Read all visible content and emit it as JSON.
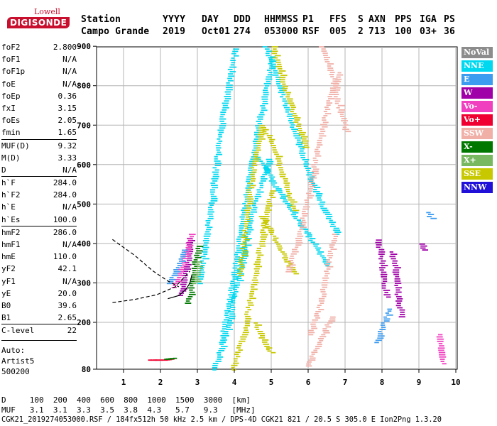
{
  "logo": {
    "top": "Lowell",
    "brand": "DIGISONDE"
  },
  "header": {
    "labels": [
      "Station",
      "YYYY",
      "DAY",
      "DDD",
      "HHMMSS",
      "P1",
      "FFS",
      "S",
      "AXN",
      "PPS",
      "IGA",
      "PS"
    ],
    "values": [
      "Campo Grande",
      "2019",
      "Oct01",
      "274",
      "053000",
      "RSF",
      "005",
      "2",
      "713",
      "100",
      "03+",
      "36"
    ]
  },
  "params": [
    {
      "k": "foF2",
      "v": "2.800"
    },
    {
      "k": "foF1",
      "v": "N/A"
    },
    {
      "k": "foF1p",
      "v": "N/A"
    },
    {
      "k": "foE",
      "v": "N/A"
    },
    {
      "k": "foEp",
      "v": "0.36"
    },
    {
      "k": "fxI",
      "v": "3.15"
    },
    {
      "k": "foEs",
      "v": "2.05"
    },
    {
      "k": "fmin",
      "v": "1.65"
    },
    {
      "k": "MUF(D)",
      "v": "9.32",
      "sep": true
    },
    {
      "k": "M(D)",
      "v": "3.33"
    },
    {
      "k": "D",
      "v": "N/A"
    },
    {
      "k": "h`F",
      "v": "284.0",
      "sep": true
    },
    {
      "k": "h`F2",
      "v": "284.0"
    },
    {
      "k": "h`E",
      "v": "N/A"
    },
    {
      "k": "h`Es",
      "v": "100.0"
    },
    {
      "k": "hmF2",
      "v": "286.0",
      "sep": true
    },
    {
      "k": "hmF1",
      "v": "N/A"
    },
    {
      "k": "hmE",
      "v": "110.0"
    },
    {
      "k": "yF2",
      "v": "42.1"
    },
    {
      "k": "yF1",
      "v": "N/A"
    },
    {
      "k": "yE",
      "v": "20.0"
    },
    {
      "k": "B0",
      "v": "39.6"
    },
    {
      "k": "B1",
      "v": "2.65"
    },
    {
      "k": "C-level",
      "v": "22",
      "sep": true
    }
  ],
  "auto": [
    "Auto:",
    "Artist5",
    "500200"
  ],
  "legend": [
    {
      "label": "NoVal",
      "color": "#8c8c8c"
    },
    {
      "label": "NNE",
      "color": "#00d8f0"
    },
    {
      "label": "E",
      "color": "#3c9cf0"
    },
    {
      "label": "W",
      "color": "#a000a8"
    },
    {
      "label": "Vo-",
      "color": "#f040c0"
    },
    {
      "label": "Vo+",
      "color": "#f00030"
    },
    {
      "label": "SSW",
      "color": "#f0b0a8"
    },
    {
      "label": "X-",
      "color": "#007800"
    },
    {
      "label": "X+",
      "color": "#78b860"
    },
    {
      "label": "SSE",
      "color": "#c8c800"
    },
    {
      "label": "NNW",
      "color": "#2010d8"
    }
  ],
  "footer": {
    "d_line": "D     100  200  400  600  800  1000  1500  3000  [km]",
    "muf_line": "MUF   3.1  3.1  3.3  3.5  3.8  4.3   5.7   9.3   [MHz]",
    "file_line": "CGK21_2019274053000.RSF / 184fx512h 50 kHz 2.5 km / DPS-4D CGK21 821 / 20.5 S 305.0 E Ion2Png 1.3.20"
  },
  "chart_data": {
    "type": "scatter",
    "xlabel": "",
    "ylabel": "",
    "xlim": [
      0.7,
      10.1
    ],
    "ylim": [
      80,
      900
    ],
    "xticks": [
      1,
      2,
      3,
      4,
      5,
      6,
      7,
      8,
      9,
      10
    ],
    "yticks": [
      80,
      200,
      300,
      400,
      500,
      600,
      700,
      800,
      900
    ],
    "grid": true,
    "traces": [
      {
        "series": "NNE",
        "points": [
          [
            3.0,
            300
          ],
          [
            3.2,
            420
          ],
          [
            3.4,
            560
          ],
          [
            3.6,
            700
          ],
          [
            3.8,
            820
          ],
          [
            4.0,
            900
          ]
        ]
      },
      {
        "series": "NNE",
        "points": [
          [
            3.6,
            150
          ],
          [
            3.9,
            300
          ],
          [
            4.2,
            480
          ],
          [
            4.6,
            700
          ],
          [
            5.0,
            880
          ]
        ]
      },
      {
        "series": "NNE",
        "points": [
          [
            3.4,
            80
          ],
          [
            3.6,
            140
          ],
          [
            3.8,
            200
          ],
          [
            4.1,
            330
          ],
          [
            4.4,
            470
          ],
          [
            4.7,
            560
          ],
          [
            4.9,
            620
          ]
        ]
      },
      {
        "series": "NNE",
        "points": [
          [
            4.8,
            900
          ],
          [
            5.2,
            790
          ],
          [
            5.6,
            680
          ],
          [
            6.0,
            570
          ],
          [
            6.4,
            480
          ],
          [
            6.8,
            420
          ]
        ]
      },
      {
        "series": "NNE",
        "points": [
          [
            4.6,
            620
          ],
          [
            5.1,
            540
          ],
          [
            5.6,
            470
          ],
          [
            6.1,
            400
          ],
          [
            6.5,
            340
          ]
        ]
      },
      {
        "series": "SSE",
        "points": [
          [
            3.9,
            80
          ],
          [
            4.2,
            170
          ],
          [
            4.5,
            320
          ],
          [
            4.8,
            470
          ],
          [
            5.0,
            540
          ]
        ]
      },
      {
        "series": "SSE",
        "points": [
          [
            4.1,
            320
          ],
          [
            4.4,
            560
          ],
          [
            4.7,
            700
          ],
          [
            5.0,
            650
          ],
          [
            5.3,
            560
          ],
          [
            5.6,
            480
          ]
        ]
      },
      {
        "series": "SSE",
        "points": [
          [
            4.7,
            470
          ],
          [
            5.0,
            420
          ],
          [
            5.3,
            370
          ],
          [
            5.6,
            320
          ]
        ]
      },
      {
        "series": "SSE",
        "points": [
          [
            4.5,
            200
          ],
          [
            4.8,
            140
          ],
          [
            5.0,
            120
          ]
        ]
      },
      {
        "series": "SSE",
        "points": [
          [
            5.0,
            900
          ],
          [
            5.3,
            800
          ],
          [
            5.6,
            720
          ],
          [
            5.9,
            640
          ]
        ]
      },
      {
        "series": "SSW",
        "points": [
          [
            5.4,
            330
          ],
          [
            5.7,
            420
          ],
          [
            6.0,
            540
          ],
          [
            6.2,
            640
          ],
          [
            6.4,
            720
          ],
          [
            6.6,
            790
          ],
          [
            6.8,
            840
          ]
        ]
      },
      {
        "series": "SSW",
        "points": [
          [
            6.0,
            170
          ],
          [
            6.3,
            250
          ],
          [
            6.5,
            360
          ],
          [
            6.7,
            430
          ]
        ]
      },
      {
        "series": "SSW",
        "points": [
          [
            5.9,
            90
          ],
          [
            6.2,
            140
          ],
          [
            6.4,
            180
          ],
          [
            6.6,
            220
          ]
        ]
      },
      {
        "series": "SSW",
        "points": [
          [
            6.3,
            900
          ],
          [
            6.6,
            830
          ],
          [
            6.8,
            740
          ],
          [
            7.0,
            680
          ]
        ]
      },
      {
        "series": "X-",
        "points": [
          [
            2.7,
            250
          ],
          [
            2.8,
            300
          ],
          [
            2.9,
            360
          ],
          [
            3.0,
            400
          ]
        ]
      },
      {
        "series": "W",
        "points": [
          [
            2.5,
            270
          ],
          [
            2.6,
            320
          ],
          [
            2.7,
            370
          ],
          [
            2.75,
            420
          ]
        ]
      },
      {
        "series": "Vo-",
        "points": [
          [
            2.3,
            290
          ],
          [
            2.5,
            330
          ],
          [
            2.65,
            380
          ],
          [
            2.8,
            430
          ]
        ]
      },
      {
        "series": "E",
        "points": [
          [
            2.2,
            300
          ],
          [
            2.4,
            340
          ],
          [
            2.6,
            390
          ]
        ]
      },
      {
        "series": "X+",
        "points": [
          [
            2.9,
            300
          ],
          [
            3.0,
            360
          ]
        ]
      },
      {
        "series": "Vo+",
        "points": [
          [
            1.7,
            105
          ],
          [
            2.0,
            105
          ],
          [
            2.3,
            108
          ]
        ]
      },
      {
        "series": "X-",
        "points": [
          [
            2.1,
            107
          ],
          [
            2.4,
            110
          ]
        ]
      },
      {
        "series": "W",
        "points": [
          [
            7.8,
            410
          ],
          [
            7.9,
            380
          ],
          [
            8.0,
            300
          ],
          [
            8.1,
            260
          ]
        ]
      },
      {
        "series": "W",
        "points": [
          [
            8.2,
            380
          ],
          [
            8.3,
            340
          ],
          [
            8.4,
            250
          ],
          [
            8.5,
            210
          ]
        ]
      },
      {
        "series": "W",
        "points": [
          [
            9.0,
            400
          ],
          [
            9.1,
            380
          ]
        ]
      },
      {
        "series": "Vo-",
        "points": [
          [
            9.5,
            170
          ],
          [
            9.55,
            130
          ],
          [
            9.6,
            90
          ]
        ]
      },
      {
        "series": "E",
        "points": [
          [
            7.8,
            150
          ],
          [
            8.0,
            200
          ],
          [
            8.2,
            240
          ]
        ]
      },
      {
        "series": "E",
        "points": [
          [
            9.2,
            480
          ],
          [
            9.3,
            460
          ]
        ]
      }
    ],
    "curves": [
      {
        "style": "dashed",
        "points": [
          [
            0.7,
            410
          ],
          [
            1.3,
            370
          ],
          [
            1.8,
            330
          ],
          [
            2.2,
            305
          ],
          [
            2.5,
            290
          ]
        ]
      },
      {
        "style": "dashed",
        "points": [
          [
            0.7,
            250
          ],
          [
            1.3,
            258
          ],
          [
            1.9,
            270
          ],
          [
            2.4,
            290
          ],
          [
            2.8,
            330
          ]
        ]
      },
      {
        "style": "solid",
        "points": [
          [
            2.2,
            260
          ],
          [
            2.5,
            268
          ],
          [
            2.7,
            285
          ],
          [
            2.8,
            300
          ],
          [
            2.85,
            320
          ]
        ]
      }
    ]
  }
}
